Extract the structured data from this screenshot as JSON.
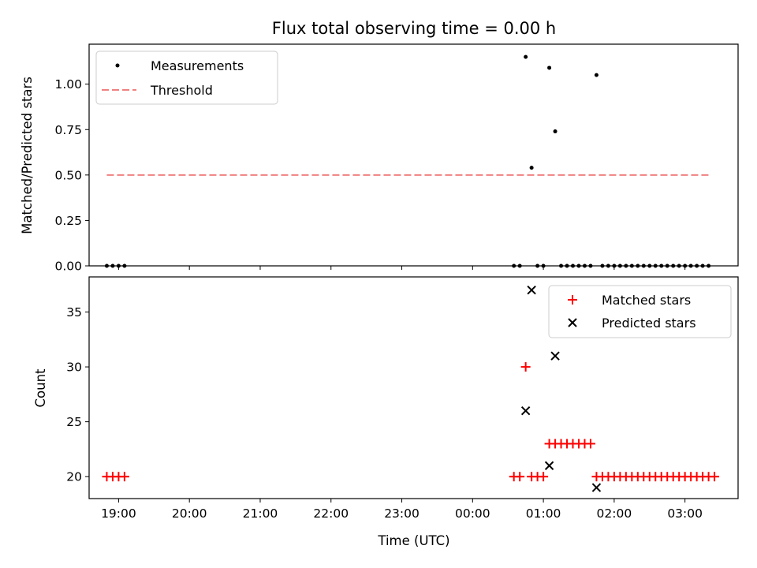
{
  "chart_data": [
    {
      "type": "scatter",
      "title": "Flux total observing time = 0.00 h",
      "xlabel": "",
      "ylabel": "Matched/Predicted stars",
      "ylim": [
        0,
        1.22
      ],
      "xlim": [
        "18:35",
        "03:45"
      ],
      "yticks": [
        "0.00",
        "0.25",
        "0.50",
        "0.75",
        "1.00"
      ],
      "ytick_values": [
        0,
        0.25,
        0.5,
        0.75,
        1.0
      ],
      "grid": false,
      "legend_placement": "top-left",
      "series": [
        {
          "name": "Measurements",
          "marker": "dot",
          "color": "#000000",
          "points": [
            [
              "18:50",
              0
            ],
            [
              "18:55",
              0
            ],
            [
              "19:00",
              0
            ],
            [
              "19:05",
              0
            ],
            [
              "00:35",
              0
            ],
            [
              "00:40",
              0
            ],
            [
              "00:45",
              1.15
            ],
            [
              "00:50",
              0.54
            ],
            [
              "00:55",
              0
            ],
            [
              "01:00",
              0
            ],
            [
              "01:05",
              1.09
            ],
            [
              "01:10",
              0.74
            ],
            [
              "01:15",
              0
            ],
            [
              "01:20",
              0
            ],
            [
              "01:25",
              0
            ],
            [
              "01:30",
              0
            ],
            [
              "01:35",
              0
            ],
            [
              "01:40",
              0
            ],
            [
              "01:45",
              1.05
            ],
            [
              "01:50",
              0
            ],
            [
              "01:55",
              0
            ],
            [
              "02:00",
              0
            ],
            [
              "02:05",
              0
            ],
            [
              "02:10",
              0
            ],
            [
              "02:15",
              0
            ],
            [
              "02:20",
              0
            ],
            [
              "02:25",
              0
            ],
            [
              "02:30",
              0
            ],
            [
              "02:35",
              0
            ],
            [
              "02:40",
              0
            ],
            [
              "02:45",
              0
            ],
            [
              "02:50",
              0
            ],
            [
              "02:55",
              0
            ],
            [
              "03:00",
              0
            ],
            [
              "03:05",
              0
            ],
            [
              "03:10",
              0
            ],
            [
              "03:15",
              0
            ],
            [
              "03:20",
              0
            ]
          ]
        },
        {
          "name": "Threshold",
          "marker": "dashed-line",
          "color": "#f08080",
          "points": [
            [
              "18:50",
              0.5
            ],
            [
              "03:20",
              0.5
            ]
          ]
        }
      ]
    },
    {
      "type": "scatter",
      "title": "",
      "xlabel": "Time (UTC)",
      "ylabel": "Count",
      "ylim": [
        18,
        38.2
      ],
      "xlim": [
        "18:35",
        "03:45"
      ],
      "xticks": [
        "19:00",
        "20:00",
        "21:00",
        "22:00",
        "23:00",
        "00:00",
        "01:00",
        "02:00",
        "03:00"
      ],
      "yticks": [
        "20",
        "25",
        "30",
        "35"
      ],
      "ytick_values": [
        20,
        25,
        30,
        35
      ],
      "grid": false,
      "legend_placement": "top-right",
      "series": [
        {
          "name": "Matched stars",
          "marker": "plus",
          "color": "#ff0000",
          "points": [
            [
              "18:50",
              20
            ],
            [
              "18:55",
              20
            ],
            [
              "19:00",
              20
            ],
            [
              "19:05",
              20
            ],
            [
              "00:35",
              20
            ],
            [
              "00:40",
              20
            ],
            [
              "00:45",
              30
            ],
            [
              "00:50",
              20
            ],
            [
              "00:55",
              20
            ],
            [
              "01:00",
              20
            ],
            [
              "01:05",
              23
            ],
            [
              "01:10",
              23
            ],
            [
              "01:15",
              23
            ],
            [
              "01:20",
              23
            ],
            [
              "01:25",
              23
            ],
            [
              "01:30",
              23
            ],
            [
              "01:35",
              23
            ],
            [
              "01:40",
              23
            ],
            [
              "01:45",
              20
            ],
            [
              "01:50",
              20
            ],
            [
              "01:55",
              20
            ],
            [
              "02:00",
              20
            ],
            [
              "02:05",
              20
            ],
            [
              "02:10",
              20
            ],
            [
              "02:15",
              20
            ],
            [
              "02:20",
              20
            ],
            [
              "02:25",
              20
            ],
            [
              "02:30",
              20
            ],
            [
              "02:35",
              20
            ],
            [
              "02:40",
              20
            ],
            [
              "02:45",
              20
            ],
            [
              "02:50",
              20
            ],
            [
              "02:55",
              20
            ],
            [
              "03:00",
              20
            ],
            [
              "03:05",
              20
            ],
            [
              "03:10",
              20
            ],
            [
              "03:15",
              20
            ],
            [
              "03:20",
              20
            ],
            [
              "03:25",
              20
            ]
          ]
        },
        {
          "name": "Predicted stars",
          "marker": "x",
          "color": "#000000",
          "points": [
            [
              "00:45",
              26
            ],
            [
              "00:50",
              37
            ],
            [
              "01:05",
              21
            ],
            [
              "01:10",
              31
            ],
            [
              "01:45",
              19
            ]
          ]
        }
      ]
    }
  ]
}
